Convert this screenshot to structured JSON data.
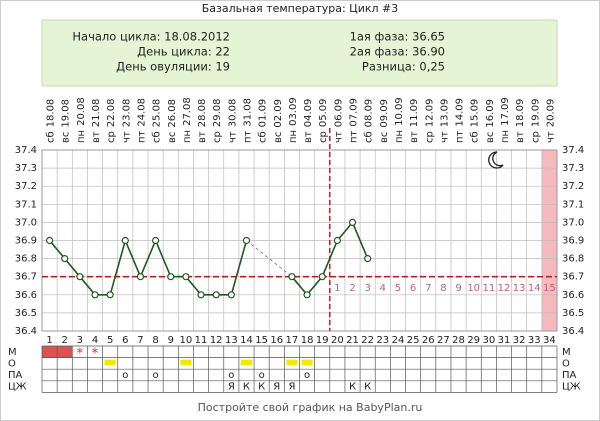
{
  "title": "Базальная температура: Цикл #3",
  "info": {
    "left": [
      "Начало цикла: 18.08.2012",
      "День цикла: 22",
      "День овуляции: 19"
    ],
    "right": [
      "1ая фаза: 36.65",
      "2ая фаза: 36.90",
      "Разница: 0,25"
    ]
  },
  "chart_data": {
    "type": "line",
    "x": [
      1,
      2,
      3,
      4,
      5,
      6,
      7,
      8,
      9,
      10,
      11,
      12,
      13,
      14,
      15,
      16,
      17,
      18,
      19,
      20,
      21,
      22,
      23,
      24,
      25,
      26,
      27,
      28,
      29,
      30,
      31,
      32,
      33,
      34
    ],
    "weekdays": [
      "сб",
      "вс",
      "пн",
      "вт",
      "ср",
      "чт",
      "пт",
      "сб",
      "вс",
      "пн",
      "вт",
      "ср",
      "чт",
      "пт",
      "сб",
      "вс",
      "пн",
      "вт",
      "ср",
      "чт",
      "пт",
      "сб",
      "вс",
      "пн",
      "вт",
      "ср",
      "чт",
      "пт",
      "сб",
      "вс",
      "пн",
      "вт",
      "ср",
      "чт"
    ],
    "dates": [
      "18.08",
      "19.08",
      "20.08",
      "21.08",
      "22.08",
      "23.08",
      "24.08",
      "25.08",
      "26.08",
      "27.08",
      "28.08",
      "29.08",
      "30.08",
      "31.08",
      "01.09",
      "02.09",
      "03.09",
      "04.09",
      "05.09",
      "06.09",
      "07.09",
      "08.09",
      "09.09",
      "10.09",
      "11.09",
      "12.09",
      "13.09",
      "14.09",
      "15.09",
      "16.09",
      "17.09",
      "18.09",
      "19.09",
      "20.09"
    ],
    "xlim": [
      0.5,
      34.5
    ],
    "series": [
      {
        "name": "BBT",
        "color": "#1e5a1e",
        "values": [
          36.9,
          36.8,
          36.7,
          36.6,
          36.6,
          36.9,
          36.7,
          36.9,
          36.7,
          36.7,
          36.6,
          36.6,
          36.6,
          36.9,
          null,
          null,
          36.7,
          36.6,
          36.7,
          36.9,
          37.0,
          36.8,
          null,
          null,
          null,
          null,
          null,
          null,
          null,
          null,
          null,
          null,
          null,
          null
        ]
      }
    ],
    "ylim": [
      36.4,
      37.4
    ],
    "yticks": [
      36.4,
      36.5,
      36.6,
      36.7,
      36.8,
      36.9,
      {
        "value": 37,
        "label": "37.0"
      },
      37.1,
      37.2,
      37.3,
      37.4
    ],
    "coverline": {
      "value": 36.7,
      "color": "#b22222"
    },
    "ovulation_day": 19,
    "phase2": {
      "start_day": 20,
      "labels": [
        1,
        2,
        3,
        4,
        5,
        6,
        7,
        8,
        9,
        10,
        11,
        12,
        13,
        14,
        15
      ],
      "color": "#c0607a"
    },
    "highlight": {
      "day": 34,
      "color": "#f6b9bd"
    },
    "rows": [
      {
        "name": "М",
        "fill_days": [
          1,
          2
        ],
        "fill_color": "#d9534f",
        "cells": [
          null,
          null,
          "*",
          "*",
          null,
          null,
          null,
          null,
          null,
          null,
          null,
          null,
          null,
          null,
          null,
          null,
          null,
          null,
          null,
          null,
          null,
          null,
          null,
          null,
          null,
          null,
          null,
          null,
          null,
          null,
          null,
          null,
          null,
          null
        ]
      },
      {
        "name": "О",
        "fill_days": [
          5,
          10,
          14,
          17,
          18
        ],
        "fill_color": "#f5e800",
        "cells": [
          null,
          null,
          null,
          null,
          null,
          null,
          null,
          null,
          null,
          null,
          null,
          null,
          null,
          null,
          null,
          null,
          null,
          null,
          null,
          null,
          null,
          null,
          null,
          null,
          null,
          null,
          null,
          null,
          null,
          null,
          null,
          null,
          null,
          null
        ]
      },
      {
        "name": "ПА",
        "fill_days": [],
        "fill_color": "#ffffff",
        "cells": [
          null,
          null,
          null,
          null,
          null,
          "о",
          null,
          "о",
          null,
          null,
          null,
          null,
          "о",
          null,
          "о",
          null,
          null,
          "о",
          null,
          null,
          null,
          null,
          null,
          null,
          null,
          null,
          null,
          null,
          null,
          null,
          null,
          null,
          null,
          null
        ]
      },
      {
        "name": "ЦЖ",
        "fill_days": [],
        "fill_color": "#ffffff",
        "cells": [
          null,
          null,
          null,
          null,
          null,
          null,
          null,
          null,
          null,
          null,
          null,
          null,
          "Я",
          "К",
          "К",
          "Я",
          "Я",
          null,
          null,
          null,
          "К",
          "К",
          null,
          null,
          null,
          null,
          null,
          null,
          null,
          null,
          null,
          null,
          null,
          null
        ]
      }
    ]
  },
  "footer": "Постройте свой график на BabyPlan.ru"
}
